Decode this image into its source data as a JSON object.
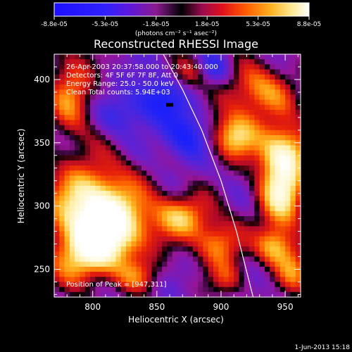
{
  "chart_data": {
    "type": "heatmap",
    "title": "Reconstructed RHESSI Image",
    "xlabel": "Heliocentric X (arcsec)",
    "ylabel": "Heliocentric Y (arcsec)",
    "xlim": [
      770,
      962
    ],
    "ylim": [
      228,
      420
    ],
    "x_ticks": [
      800,
      850,
      900,
      950
    ],
    "y_ticks": [
      250,
      300,
      350,
      400
    ],
    "colorbar": {
      "ticks": [
        "-8.8e-05",
        "-5.3e-05",
        "-1.8e-05",
        "1.8e-05",
        "5.3e-05",
        "8.8e-05"
      ],
      "units_label": "(photons cm⁻² s⁻¹ asec⁻²)",
      "range": [
        -8.8e-05,
        8.8e-05
      ]
    },
    "annotations": {
      "time": "26-Apr-2003 20:37:58.000 to 20:43:40.000",
      "detectors": "Detectors: 4F 5F 6F 7F 8F, Att 0",
      "energy": "Energy Range: 25.0 - 50.0 keV",
      "clean": "Clean     Total counts: 5.94E+03",
      "peak": "Position of Peak = [947,311]"
    },
    "limb_curve": [
      [
        855,
        420
      ],
      [
        870,
        392
      ],
      [
        885,
        360
      ],
      [
        900,
        320
      ],
      [
        912,
        280
      ],
      [
        925,
        228
      ]
    ],
    "peak_position": [
      947,
      311
    ],
    "marker_position": [
      860,
      380
    ],
    "sources": [
      {
        "x": 800,
        "y": 302,
        "sx": 26,
        "sy": 24,
        "amp": 1.0
      },
      {
        "x": 815,
        "y": 276,
        "sx": 22,
        "sy": 20,
        "amp": 0.8
      },
      {
        "x": 790,
        "y": 258,
        "sx": 18,
        "sy": 16,
        "amp": 0.6
      },
      {
        "x": 783,
        "y": 390,
        "sx": 13,
        "sy": 26,
        "amp": 0.65
      },
      {
        "x": 870,
        "y": 292,
        "sx": 16,
        "sy": 13,
        "amp": 0.75
      },
      {
        "x": 898,
        "y": 270,
        "sx": 13,
        "sy": 13,
        "amp": 0.7
      },
      {
        "x": 947,
        "y": 311,
        "sx": 13,
        "sy": 22,
        "amp": 1.0
      },
      {
        "x": 950,
        "y": 345,
        "sx": 15,
        "sy": 15,
        "amp": 0.8
      },
      {
        "x": 930,
        "y": 390,
        "sx": 20,
        "sy": 16,
        "amp": 0.7
      },
      {
        "x": 910,
        "y": 355,
        "sx": 13,
        "sy": 13,
        "amp": 0.85
      },
      {
        "x": 942,
        "y": 268,
        "sx": 11,
        "sy": 11,
        "amp": 0.7
      },
      {
        "x": 958,
        "y": 248,
        "sx": 10,
        "sy": 13,
        "amp": 0.6
      },
      {
        "x": 875,
        "y": 404,
        "sx": 10,
        "sy": 10,
        "amp": 0.45
      },
      {
        "x": 835,
        "y": 244,
        "sx": 11,
        "sy": 9,
        "amp": 0.4
      },
      {
        "x": 905,
        "y": 242,
        "sx": 10,
        "sy": 10,
        "amp": 0.45
      },
      {
        "x": 852,
        "y": 385,
        "sx": 16,
        "sy": 13,
        "amp": -0.5
      },
      {
        "x": 872,
        "y": 355,
        "sx": 13,
        "sy": 13,
        "amp": -0.55
      },
      {
        "x": 822,
        "y": 372,
        "sx": 13,
        "sy": 11,
        "amp": -0.3
      },
      {
        "x": 895,
        "y": 408,
        "sx": 9,
        "sy": 9,
        "amp": -0.35
      }
    ]
  },
  "footer": {
    "date": "1-Jun-2013 15:18"
  }
}
